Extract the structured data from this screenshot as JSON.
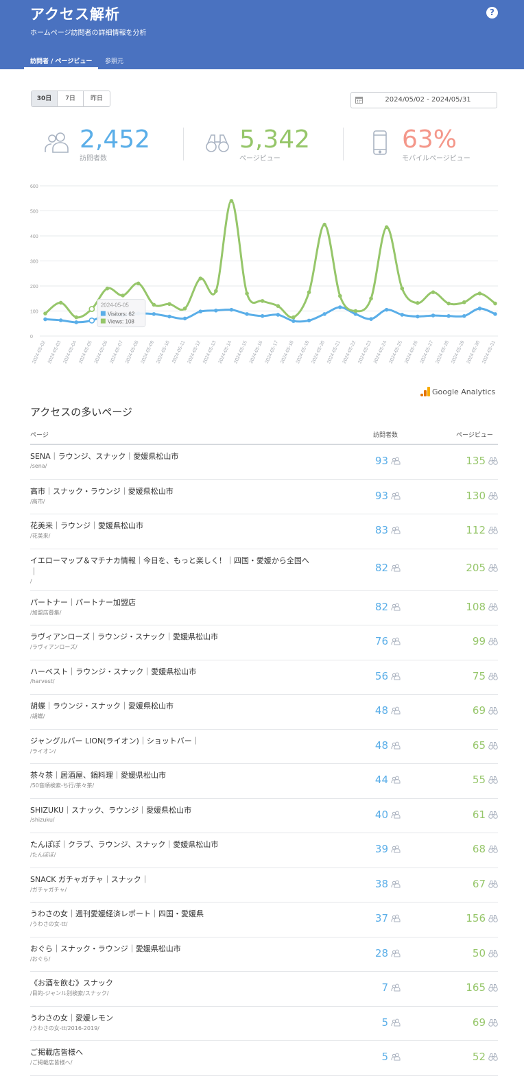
{
  "header": {
    "title": "アクセス解析",
    "subtitle": "ホームページ訪問者の詳細情報を分析",
    "help": "?",
    "tabs": [
      {
        "label": "訪問者 / ページビュー",
        "active": true
      },
      {
        "label": "参照元",
        "active": false
      }
    ]
  },
  "controls": {
    "ranges": [
      {
        "label": "30日",
        "active": true
      },
      {
        "label": "7日",
        "active": false
      },
      {
        "label": "昨日",
        "active": false
      }
    ],
    "date_range": "2024/05/02 - 2024/05/31"
  },
  "stats": {
    "visitors": {
      "value": "2,452",
      "label": "訪問者数",
      "color": "#5aaee8"
    },
    "pageviews": {
      "value": "5,342",
      "label": "ページビュー",
      "color": "#96c66a"
    },
    "mobile": {
      "value": "63%",
      "label": "モバイルページビュー",
      "color": "#f4978a"
    }
  },
  "chart_data": {
    "type": "line",
    "x": [
      "2024-05-02",
      "2024-05-03",
      "2024-05-04",
      "2024-05-05",
      "2024-05-06",
      "2024-05-07",
      "2024-05-08",
      "2024-05-09",
      "2024-05-10",
      "2024-05-11",
      "2024-05-12",
      "2024-05-13",
      "2024-05-14",
      "2024-05-15",
      "2024-05-16",
      "2024-05-17",
      "2024-05-18",
      "2024-05-19",
      "2024-05-20",
      "2024-05-21",
      "2024-05-22",
      "2024-05-23",
      "2024-05-24",
      "2024-05-25",
      "2024-05-26",
      "2024-05-27",
      "2024-05-28",
      "2024-05-29",
      "2024-05-30",
      "2024-05-31"
    ],
    "series": [
      {
        "key": "visitors",
        "color": "#5aaee8",
        "values": [
          67,
          63,
          55,
          62,
          85,
          82,
          90,
          88,
          78,
          70,
          98,
          102,
          105,
          88,
          80,
          85,
          60,
          62,
          88,
          115,
          88,
          68,
          105,
          85,
          78,
          82,
          80,
          80,
          110,
          88
        ]
      },
      {
        "key": "views",
        "color": "#96c66a",
        "values": [
          90,
          133,
          75,
          108,
          190,
          162,
          210,
          125,
          128,
          110,
          230,
          180,
          540,
          170,
          140,
          120,
          75,
          175,
          445,
          160,
          100,
          150,
          435,
          190,
          132,
          175,
          130,
          135,
          170,
          130
        ]
      }
    ],
    "ylim": [
      0,
      600
    ],
    "yticks": [
      0,
      100,
      200,
      300,
      400,
      500,
      600
    ],
    "grid": true,
    "tooltip": {
      "date": "2024-05-05",
      "visitors_label": "Visitors: 62",
      "views_label": "Views: 108"
    }
  },
  "ga_label": "Google Analytics",
  "table": {
    "title": "アクセスの多いページ",
    "headers": {
      "page": "ページ",
      "visitors": "訪問者数",
      "views": "ページビュー"
    },
    "rows": [
      {
        "title": "SENA｜ラウンジ、スナック｜愛媛県松山市",
        "path": "/sena/",
        "visitors": "93",
        "views": "135"
      },
      {
        "title": "高市｜スナック・ラウンジ｜愛媛県松山市",
        "path": "/高市/",
        "visitors": "93",
        "views": "130"
      },
      {
        "title": "花美来｜ラウンジ｜愛媛県松山市",
        "path": "/花美来/",
        "visitors": "83",
        "views": "112"
      },
      {
        "title": "イエローマップ＆マチナカ情報｜今日を、もっと楽しく！｜四国・愛媛から全国へ｜",
        "path": "/",
        "visitors": "82",
        "views": "205"
      },
      {
        "title": "パートナー｜パートナー加盟店",
        "path": "/加盟店募集/",
        "visitors": "82",
        "views": "108"
      },
      {
        "title": "ラヴィアンローズ｜ラウンジ・スナック｜愛媛県松山市",
        "path": "/ラヴィアンローズ/",
        "visitors": "76",
        "views": "99"
      },
      {
        "title": "ハーベスト｜ラウンジ・スナック｜愛媛県松山市",
        "path": "/harvest/",
        "visitors": "56",
        "views": "75"
      },
      {
        "title": "胡蝶｜ラウンジ・スナック｜愛媛県松山市",
        "path": "/胡蝶/",
        "visitors": "48",
        "views": "69"
      },
      {
        "title": "ジャングルバー LION(ライオン)｜ショットバー｜",
        "path": "/ライオン/",
        "visitors": "48",
        "views": "65"
      },
      {
        "title": "茶々茶｜居酒屋、鍋料理｜愛媛県松山市",
        "path": "/50音順検索-ち行/茶々茶/",
        "visitors": "44",
        "views": "55"
      },
      {
        "title": "SHIZUKU｜スナック、ラウンジ｜愛媛県松山市",
        "path": "/shizuku/",
        "visitors": "40",
        "views": "61"
      },
      {
        "title": "たんぽぽ｜クラブ、ラウンジ、スナック｜愛媛県松山市",
        "path": "/たんぽぽ/",
        "visitors": "39",
        "views": "68"
      },
      {
        "title": "SNACK ガチャガチャ｜スナック｜",
        "path": "/ガチャガチャ/",
        "visitors": "38",
        "views": "67"
      },
      {
        "title": "うわさの女｜週刊愛媛経済レポート｜四国・愛媛県",
        "path": "/うわさの女-tt/",
        "visitors": "37",
        "views": "156"
      },
      {
        "title": "おぐら｜スナック・ラウンジ｜愛媛県松山市",
        "path": "/おぐら/",
        "visitors": "28",
        "views": "50"
      },
      {
        "title": "《お酒を飲む》スナック",
        "path": "/目的-ジャンル別検索/スナック/",
        "visitors": "7",
        "views": "165"
      },
      {
        "title": "うわさの女｜愛媛レモン",
        "path": "/うわさの女-tt/2016-2019/",
        "visitors": "5",
        "views": "69"
      },
      {
        "title": "ご掲載店皆様へ",
        "path": "/ご掲載店皆様へ/",
        "visitors": "5",
        "views": "52"
      }
    ]
  }
}
